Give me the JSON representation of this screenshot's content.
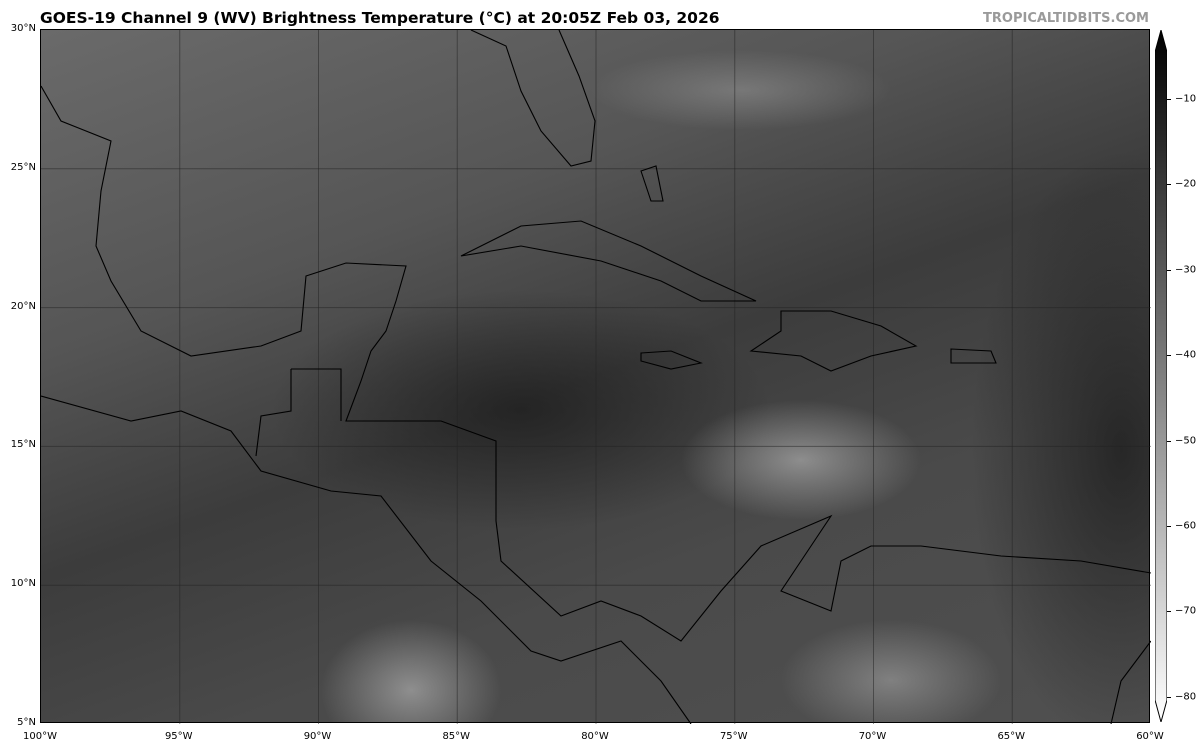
{
  "title": "GOES-19 Channel 9 (WV) Brightness Temperature (°C) at 20:05Z Feb 03, 2026",
  "watermark": "TROPICALTIDBITS.COM",
  "map": {
    "extent_lon": [
      -100,
      -60
    ],
    "extent_lat": [
      5,
      30
    ],
    "lat_labels": [
      "5°N",
      "10°N",
      "15°N",
      "20°N",
      "25°N",
      "30°N"
    ],
    "lon_labels": [
      "100°W",
      "95°W",
      "90°W",
      "85°W",
      "80°W",
      "75°W",
      "70°W",
      "65°W",
      "60°W"
    ],
    "gridlines": true
  },
  "colorbar": {
    "ticks": [
      "−10",
      "−20",
      "−30",
      "−40",
      "−50",
      "−60",
      "−70",
      "−80"
    ],
    "range": [
      -82,
      -5
    ],
    "colors": [
      "#000000",
      "#ffffff"
    ],
    "extend": "both"
  }
}
